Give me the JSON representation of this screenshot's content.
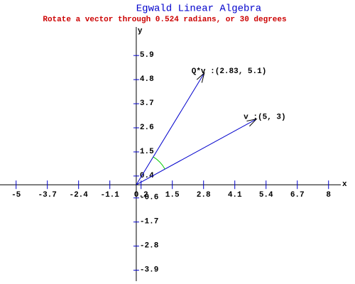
{
  "chart_data": {
    "type": "vector",
    "title": "Egwald Linear Algebra",
    "subtitle": "Rotate a vector through 0.524 radians, or 30 degrees",
    "x_label": "x",
    "y_label": "y",
    "xlim": [
      -5.67,
      8.51
    ],
    "ylim": [
      -4.4,
      7.3
    ],
    "xticks": [
      -5,
      -3.7,
      -2.4,
      -1.1,
      0.2,
      1.5,
      2.8,
      4.1,
      5.4,
      6.7,
      8
    ],
    "yticks": [
      -3.9,
      -2.8,
      -1.7,
      -0.6,
      0.4,
      1.5,
      2.6,
      3.7,
      4.8,
      5.9
    ],
    "vectors": [
      {
        "label": "v :(5, 3)",
        "x": 5,
        "y": 3,
        "color": "#0000cc"
      },
      {
        "label": "Q*v :(2.83, 5.1)",
        "x": 2.83,
        "y": 5.1,
        "color": "#0000cc"
      }
    ],
    "angle_color": "#00cc00"
  }
}
